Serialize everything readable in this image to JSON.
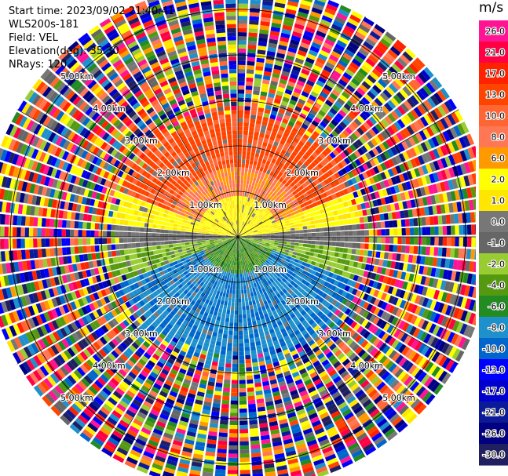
{
  "header": {
    "start_time": "Start time: 2023/09/02 21:40:41",
    "instrument": "WLS200s-181",
    "field": "Field: VEL",
    "elevation": "Elevation(deg): 35.30",
    "nrays": "NRays: 120"
  },
  "chart_data": {
    "type": "heatmap",
    "projection": "polar-ppi",
    "field": "VEL",
    "units": "m/s",
    "nrays": 120,
    "ring_labels": [
      "1.00km",
      "2.00km",
      "3.00km",
      "4.00km",
      "5.00km"
    ],
    "ring_ranges_km": [
      1,
      2,
      3,
      4,
      5
    ],
    "max_range_km": 5.6,
    "colorbar": {
      "unit_label": "m/s",
      "ticks": [
        "26.0",
        "21.0",
        "17.0",
        "13.0",
        "10.0",
        "8.0",
        "6.0",
        "2.0",
        "1.0",
        "0.0",
        "-1.0",
        "-2.0",
        "-4.0",
        "-6.0",
        "-8.0",
        "-10.0",
        "-13.0",
        "-17.0",
        "-21.0",
        "-26.0",
        "-30.0"
      ],
      "colors": [
        "#ff1493",
        "#ff0044",
        "#ff2200",
        "#ff4400",
        "#ff6633",
        "#ff7755",
        "#ff9900",
        "#ffff00",
        "#ffe600",
        "#777777",
        "#666666",
        "#99cc33",
        "#559911",
        "#228b22",
        "#1e90cc",
        "#0066cc",
        "#0000ff",
        "#0000cc",
        "#0a1a99",
        "#000080",
        "#202060"
      ]
    },
    "field_pattern": {
      "near_range_km": 2.6,
      "north_sector": "positive (orange-red)",
      "south_sector": "negative (green-blue)",
      "far_range": "noise"
    }
  }
}
